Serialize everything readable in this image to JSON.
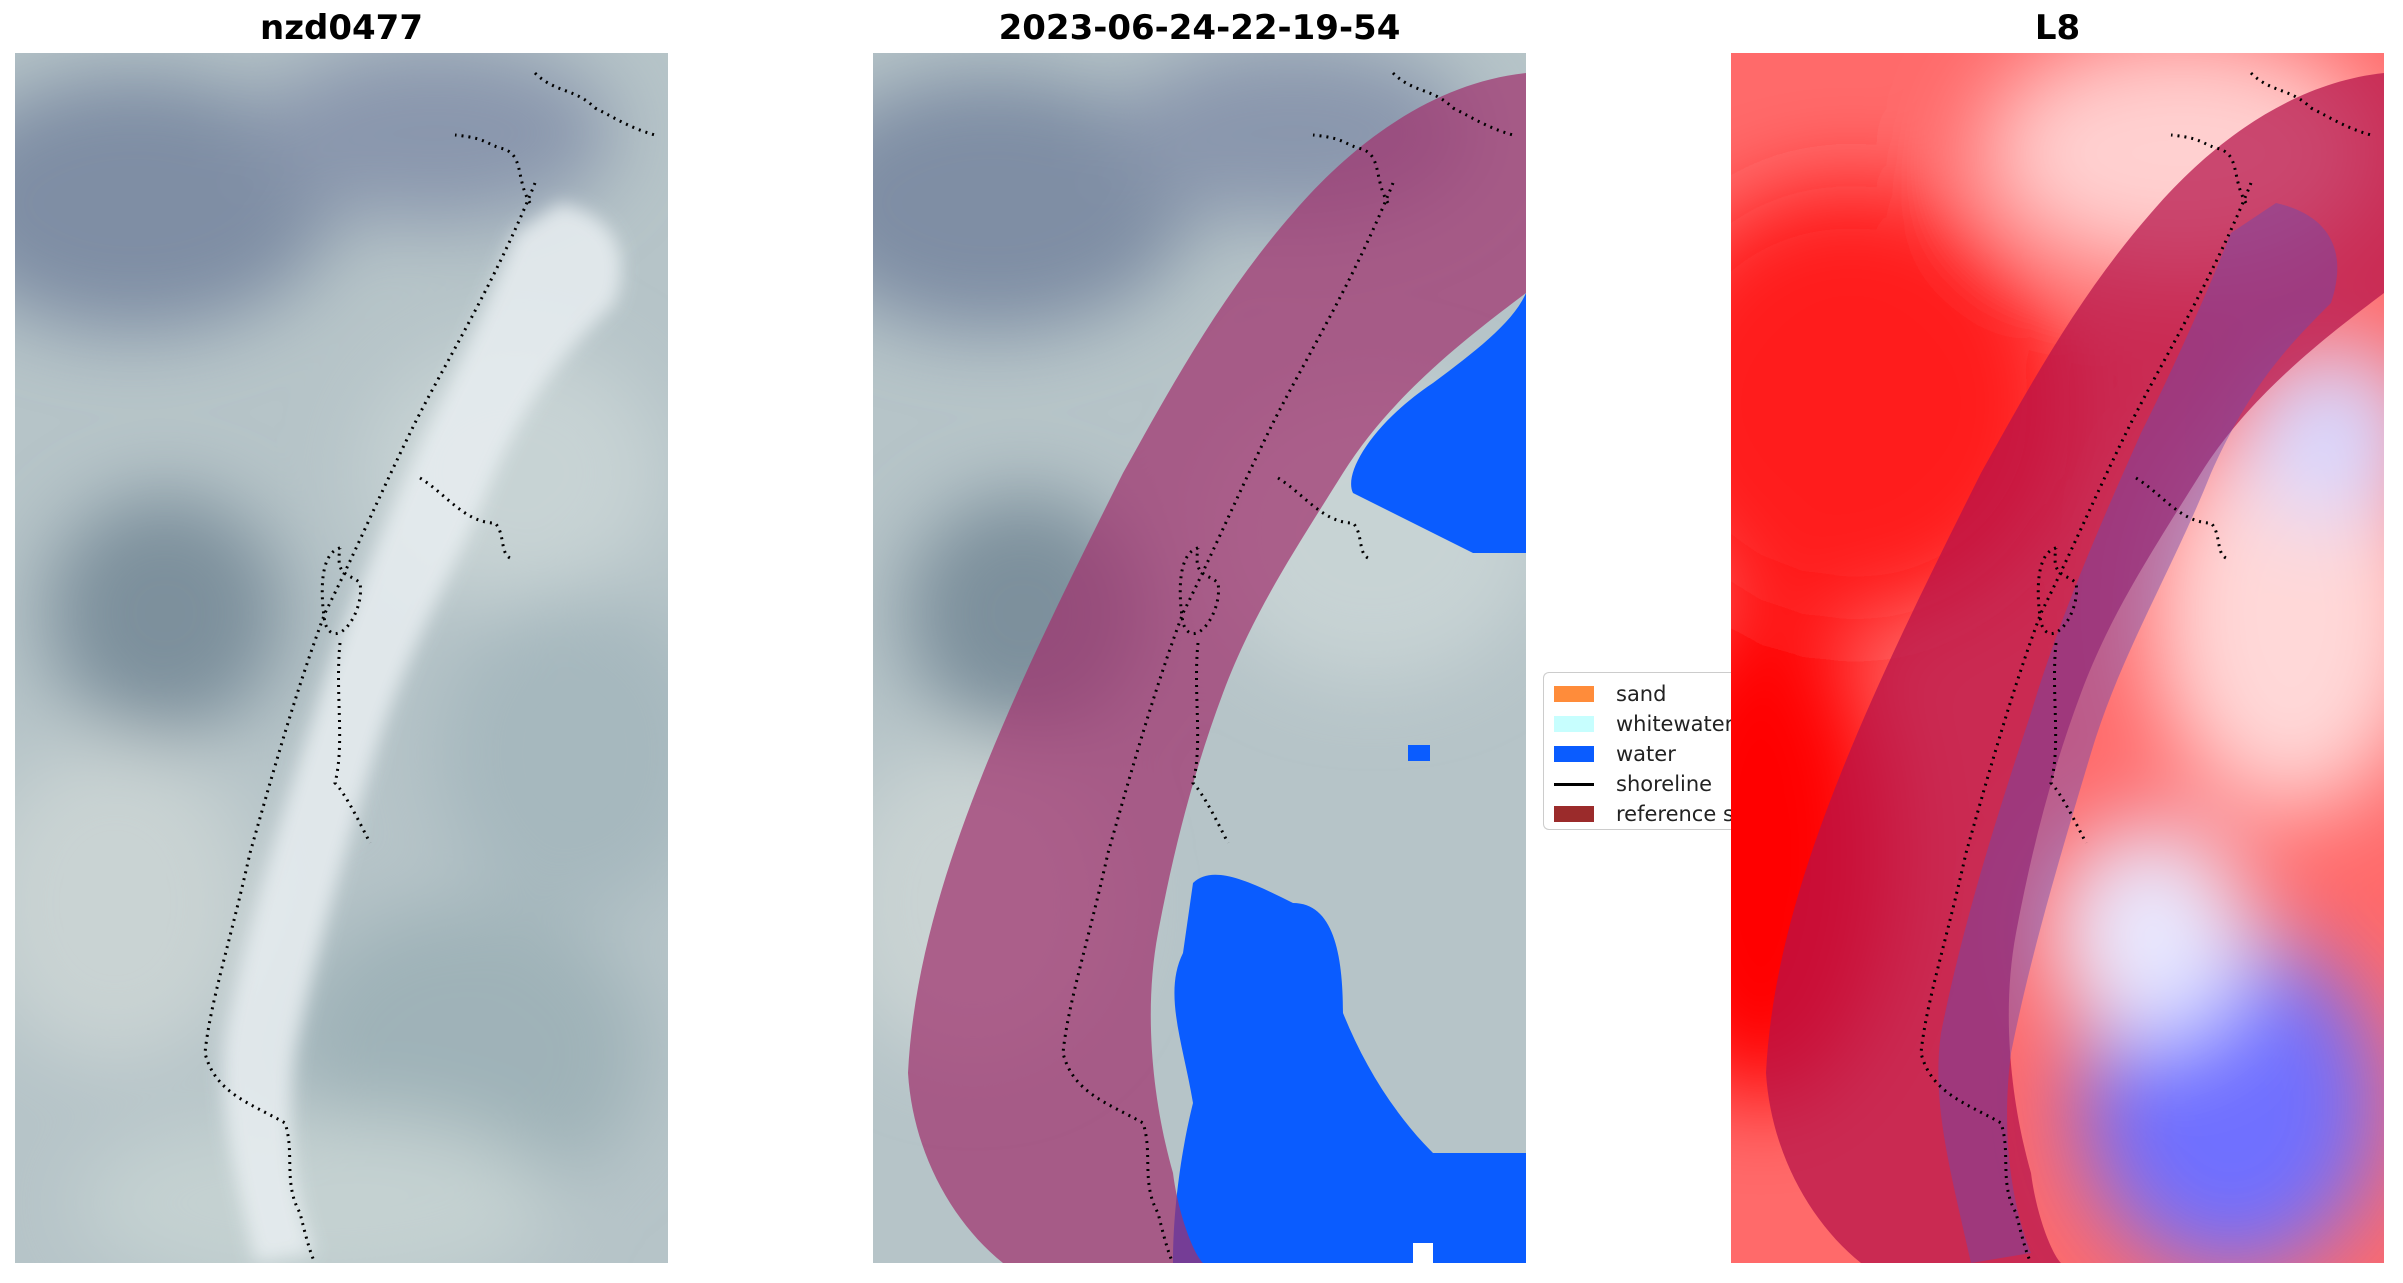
{
  "panels": [
    {
      "title": "nzd0477",
      "type": "rgb-image"
    },
    {
      "title": "2023-06-24-22-19-54",
      "type": "classified-image"
    },
    {
      "title": "L8",
      "type": "index-image"
    }
  ],
  "legend": {
    "items": [
      {
        "label": "sand",
        "color": "#ff8c3a"
      },
      {
        "label": "whitewater",
        "color": "#c7fefe"
      },
      {
        "label": "water",
        "color": "#0a5cff"
      },
      {
        "label": "shoreline",
        "color": "#000000",
        "kind": "line"
      },
      {
        "label": "reference sh",
        "color": "#9b2b2b"
      }
    ]
  },
  "colors": {
    "buffer_overlay": "#a0326e",
    "water_class": "#0a5cff",
    "index_positive": "#ff1a1a",
    "index_negative": "#3333ff",
    "shoreline": "#000000"
  }
}
